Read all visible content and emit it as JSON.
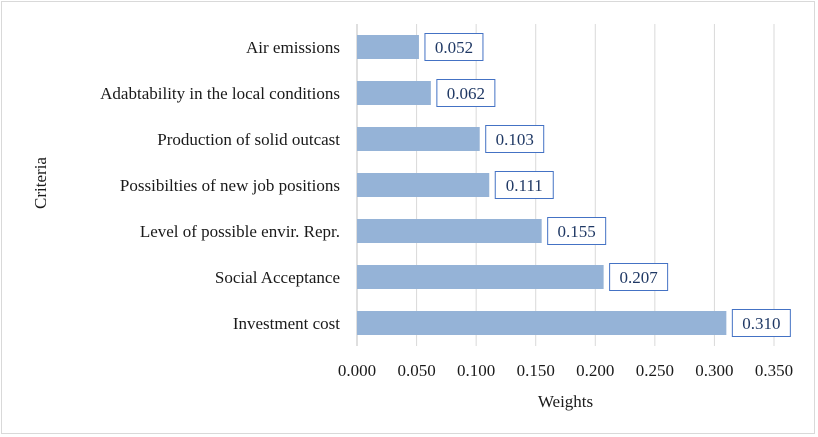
{
  "chart_data": {
    "type": "bar",
    "orientation": "horizontal",
    "categories": [
      "Air emissions",
      "Adabtability in the local conditions",
      "Production of solid outcast",
      "Possibilties of new job positions",
      "Level of possible envir. Repr.",
      "Social Acceptance",
      "Investment cost"
    ],
    "values": [
      0.052,
      0.062,
      0.103,
      0.111,
      0.155,
      0.207,
      0.31
    ],
    "data_labels": [
      "0.052",
      "0.062",
      "0.103",
      "0.111",
      "0.155",
      "0.207",
      "0.310"
    ],
    "xlabel": "Weights",
    "ylabel": "Criteria",
    "xlim": [
      0,
      0.35
    ],
    "xticks": [
      "0.000",
      "0.050",
      "0.100",
      "0.150",
      "0.200",
      "0.250",
      "0.300",
      "0.350"
    ],
    "grid": true,
    "bar_color": "#95b3d7",
    "label_color": "#1f3864",
    "label_border_color": "#4472c4"
  }
}
